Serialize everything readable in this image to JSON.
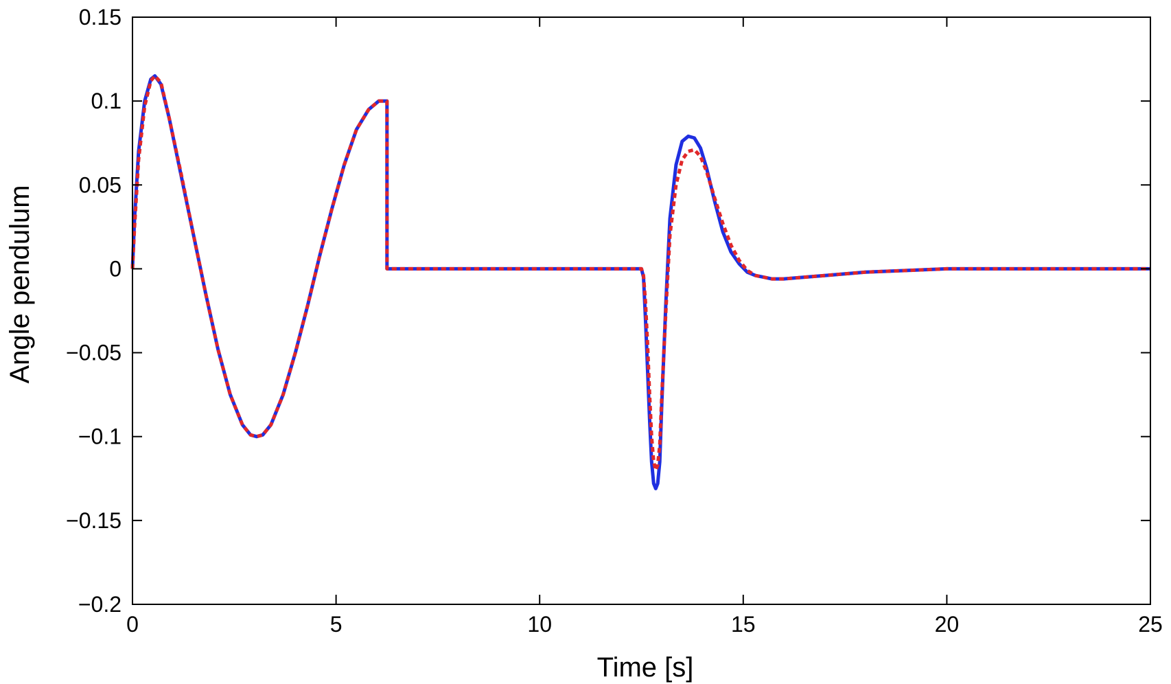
{
  "chart_data": {
    "type": "line",
    "title": "",
    "xlabel": "Time [s]",
    "ylabel": "Angle pendulum",
    "xlim": [
      0,
      25
    ],
    "ylim": [
      -0.2,
      0.15
    ],
    "xticks": [
      0,
      5,
      10,
      15,
      20,
      25
    ],
    "yticks": [
      0.15,
      0.1,
      0.05,
      0,
      -0.05,
      -0.1,
      -0.15,
      -0.2
    ],
    "xtick_labels": [
      "0",
      "5",
      "10",
      "15",
      "20",
      "25"
    ],
    "ytick_labels": [
      "0.15",
      "0.1",
      "0.05",
      "0",
      "−0.05",
      "−0.1",
      "−0.15",
      "−0.2"
    ],
    "grid": false,
    "legend": "none",
    "series": [
      {
        "color": "#1f2fe0",
        "line_style": "solid",
        "x": [
          0,
          0.05,
          0.15,
          0.3,
          0.45,
          0.55,
          0.7,
          0.9,
          1.2,
          1.5,
          1.8,
          2.1,
          2.4,
          2.7,
          2.9,
          3.05,
          3.2,
          3.4,
          3.7,
          4.0,
          4.3,
          4.6,
          4.9,
          5.2,
          5.5,
          5.8,
          6.05,
          6.25,
          6.25,
          12.5,
          12.55,
          12.6,
          12.65,
          12.7,
          12.75,
          12.8,
          12.85,
          12.9,
          12.95,
          13.0,
          13.1,
          13.2,
          13.35,
          13.5,
          13.65,
          13.8,
          13.95,
          14.1,
          14.3,
          14.5,
          14.7,
          14.9,
          15.1,
          15.3,
          15.5,
          15.7,
          16.0,
          16.5,
          17.0,
          18.0,
          19.0,
          20.0,
          21.0,
          22.0,
          23.0,
          24.0,
          25.0
        ],
        "y": [
          0.0,
          0.03,
          0.07,
          0.1,
          0.113,
          0.115,
          0.11,
          0.09,
          0.055,
          0.02,
          -0.015,
          -0.048,
          -0.075,
          -0.093,
          -0.099,
          -0.1,
          -0.099,
          -0.093,
          -0.075,
          -0.05,
          -0.022,
          0.008,
          0.036,
          0.062,
          0.083,
          0.095,
          0.1,
          0.1,
          0.0,
          0.0,
          -0.005,
          -0.03,
          -0.06,
          -0.09,
          -0.115,
          -0.128,
          -0.131,
          -0.128,
          -0.115,
          -0.08,
          -0.02,
          0.03,
          0.062,
          0.076,
          0.079,
          0.078,
          0.072,
          0.06,
          0.04,
          0.022,
          0.01,
          0.003,
          -0.002,
          -0.004,
          -0.005,
          -0.006,
          -0.006,
          -0.005,
          -0.004,
          -0.002,
          -0.001,
          0.0,
          0.0,
          0.0,
          0.0,
          0.0,
          0.0
        ]
      },
      {
        "color": "#e0282a",
        "line_style": "dashed",
        "x": [
          0,
          0.05,
          0.15,
          0.3,
          0.45,
          0.55,
          0.7,
          0.9,
          1.2,
          1.5,
          1.8,
          2.1,
          2.4,
          2.7,
          2.9,
          3.05,
          3.2,
          3.4,
          3.7,
          4.0,
          4.3,
          4.6,
          4.9,
          5.2,
          5.5,
          5.8,
          6.05,
          6.25,
          6.25,
          12.5,
          12.55,
          12.6,
          12.65,
          12.7,
          12.75,
          12.8,
          12.85,
          12.9,
          12.95,
          13.0,
          13.1,
          13.2,
          13.35,
          13.5,
          13.65,
          13.8,
          13.95,
          14.1,
          14.3,
          14.5,
          14.7,
          14.9,
          15.1,
          15.3,
          15.5,
          15.7,
          16.0,
          16.5,
          17.0,
          18.0,
          19.0,
          20.0,
          21.0,
          22.0,
          23.0,
          24.0,
          25.0
        ],
        "y": [
          0.0,
          0.025,
          0.065,
          0.097,
          0.112,
          0.115,
          0.111,
          0.09,
          0.056,
          0.02,
          -0.015,
          -0.048,
          -0.075,
          -0.093,
          -0.099,
          -0.1,
          -0.099,
          -0.093,
          -0.075,
          -0.05,
          -0.022,
          0.008,
          0.036,
          0.062,
          0.083,
          0.095,
          0.1,
          0.1,
          0.0,
          0.0,
          -0.004,
          -0.02,
          -0.045,
          -0.075,
          -0.1,
          -0.115,
          -0.12,
          -0.117,
          -0.105,
          -0.075,
          -0.025,
          0.02,
          0.05,
          0.065,
          0.07,
          0.071,
          0.067,
          0.058,
          0.042,
          0.027,
          0.014,
          0.005,
          -0.001,
          -0.004,
          -0.005,
          -0.006,
          -0.006,
          -0.005,
          -0.004,
          -0.002,
          -0.001,
          0.0,
          0.0,
          0.0,
          0.0,
          0.0,
          0.0
        ]
      }
    ]
  }
}
